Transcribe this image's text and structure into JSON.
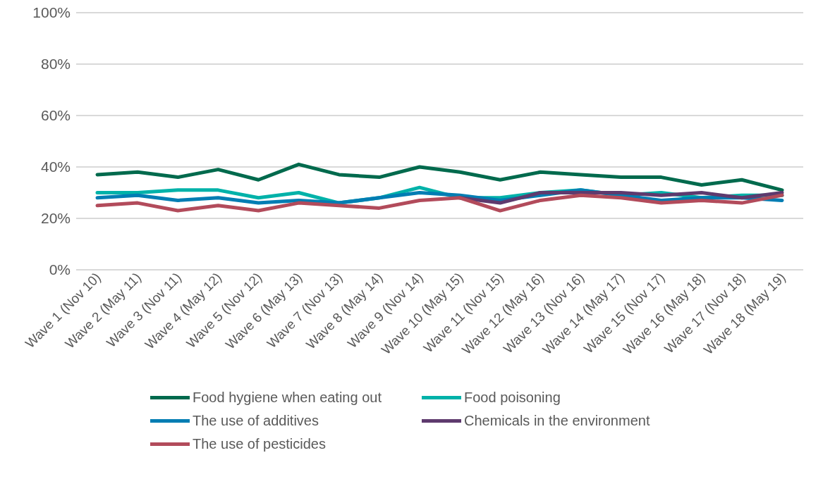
{
  "chart_data": {
    "type": "line",
    "categories": [
      "Wave 1 (Nov 10)",
      "Wave 2 (May 11)",
      "Wave 3 (Nov 11)",
      "Wave 4 (May 12)",
      "Wave 5 (Nov 12)",
      "Wave 6 (May 13)",
      "Wave 7 (Nov 13)",
      "Wave 8 (May 14)",
      "Wave 9 (Nov 14)",
      "Wave 10 (May 15)",
      "Wave 11 (Nov 15)",
      "Wave 12 (May 16)",
      "Wave 13 (Nov 16)",
      "Wave 14 (May 17)",
      "Wave 15 (Nov 17)",
      "Wave 16 (May 18)",
      "Wave 17 (Nov 18)",
      "Wave 18 (May 19)"
    ],
    "series": [
      {
        "name": "Food hygiene when eating out",
        "color": "#006a4d",
        "values": [
          37,
          38,
          36,
          39,
          35,
          41,
          37,
          36,
          40,
          38,
          35,
          38,
          37,
          36,
          36,
          33,
          35,
          31
        ]
      },
      {
        "name": "Food poisoning",
        "color": "#00b2a9",
        "values": [
          30,
          30,
          31,
          31,
          28,
          30,
          26,
          28,
          32,
          28,
          28,
          30,
          31,
          29,
          30,
          28,
          29,
          29
        ]
      },
      {
        "name": "The use of additives",
        "color": "#007db3",
        "values": [
          28,
          29,
          27,
          28,
          26,
          27,
          26,
          28,
          30,
          29,
          27,
          29,
          31,
          29,
          27,
          28,
          28,
          27
        ]
      },
      {
        "name": "Chemicals in the environment",
        "color": "#5e3a6e",
        "values": [
          null,
          null,
          null,
          null,
          null,
          null,
          null,
          null,
          null,
          28,
          26,
          30,
          30,
          30,
          29,
          30,
          28,
          30
        ]
      },
      {
        "name": "The use of pesticides",
        "color": "#b24b5b",
        "values": [
          25,
          26,
          23,
          25,
          23,
          26,
          25,
          24,
          27,
          28,
          23,
          27,
          29,
          28,
          26,
          27,
          26,
          29
        ]
      }
    ],
    "ylim": [
      0,
      100
    ],
    "yticks": [
      {
        "value": 0,
        "label": "0%"
      },
      {
        "value": 20,
        "label": "20%"
      },
      {
        "value": 40,
        "label": "40%"
      },
      {
        "value": 60,
        "label": "60%"
      },
      {
        "value": 80,
        "label": "80%"
      },
      {
        "value": 100,
        "label": "100%"
      }
    ],
    "grid": "y",
    "legend": "bottom",
    "marker": "none",
    "line_style": "solid"
  }
}
